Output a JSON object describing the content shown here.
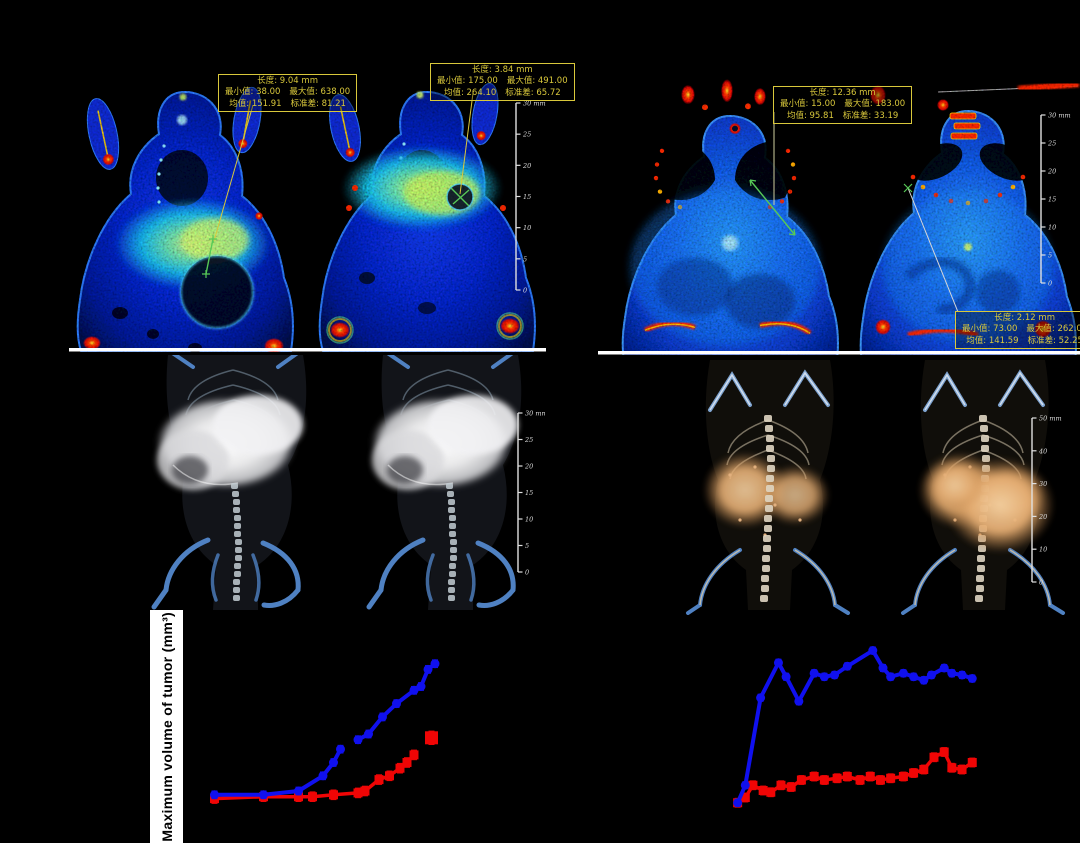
{
  "figure": {
    "background": "#000000",
    "description_visible_text_only": true
  },
  "ct_panels": {
    "left": {
      "annotations": [
        {
          "len": "长度: 9.04 mm",
          "min": "最小值: 38.00",
          "max": "最大值: 638.00",
          "mean": "均值: 151.91",
          "sd": "标准差: 81.21"
        },
        {
          "len": "长度: 3.84 mm",
          "min": "最小值: 175.00",
          "max": "最大值: 491.00",
          "mean": "均值: 264.10",
          "sd": "标准差: 65.72"
        }
      ],
      "ruler": {
        "labels": [
          "30 mm",
          "25",
          "20",
          "15",
          "10",
          "5",
          "0"
        ]
      }
    },
    "right": {
      "annotations": [
        {
          "len": "长度: 12.36 mm",
          "min": "最小值: 15.00",
          "max": "最大值: 183.00",
          "mean": "均值: 95.81",
          "sd": "标准差: 33.19"
        },
        {
          "len": "长度: 2.12 mm",
          "min": "最小值: 73.00",
          "max": "最大值: 262.00",
          "mean": "均值: 141.59",
          "sd": "标准差: 52.25"
        }
      ],
      "ruler": {
        "labels": [
          "30 mm",
          "25",
          "20",
          "15",
          "10",
          "5",
          "0"
        ]
      }
    }
  },
  "render_panels": {
    "left": {
      "ruler": {
        "labels": [
          "30 mm",
          "25",
          "20",
          "15",
          "10",
          "5",
          "0"
        ]
      }
    },
    "right": {
      "ruler": {
        "labels": [
          "50 mm",
          "40",
          "30",
          "20",
          "10",
          "0"
        ]
      }
    }
  },
  "charts": {
    "left": {
      "ylabel": "Maximum volume of tumor (mm³)"
    }
  },
  "colors": {
    "annotation_yellow": "#d9c83b",
    "measure_green": "#57c957",
    "series_blue": "#1010ee",
    "series_red": "#f00505",
    "ruler_white": "#e0e0e0"
  },
  "chart_data": [
    {
      "id": "left",
      "type": "line",
      "title": "",
      "xlabel": "",
      "ylabel": "Maximum volume of tumor (mm³)",
      "tick_labels_visible": false,
      "x_unit": "relative-% (axis tick text not visible in image)",
      "y_unit": "relative-% (axis tick text not visible in image)",
      "xlim": [
        0,
        100
      ],
      "ylim": [
        0,
        100
      ],
      "legend_visible": false,
      "series": [
        {
          "name": "red-squares",
          "color": "#f00505",
          "marker": "square",
          "marker_size": 9,
          "line_width": 3.5,
          "error": 2.5,
          "segments": [
            [
              [
                7,
                6
              ],
              [
                21,
                7
              ],
              [
                31,
                7
              ],
              [
                35,
                7
              ],
              [
                41,
                8
              ],
              [
                48,
                9
              ],
              [
                50,
                10
              ],
              [
                54,
                16
              ],
              [
                57,
                18
              ],
              [
                60,
                22
              ],
              [
                62,
                25
              ],
              [
                64,
                29
              ]
            ]
          ]
        },
        {
          "name": "blue-circles",
          "color": "#1010ee",
          "marker": "circle",
          "marker_size": 9,
          "line_width": 4,
          "error": 2,
          "segments": [
            [
              [
                7,
                8
              ],
              [
                21,
                8
              ],
              [
                31,
                10
              ],
              [
                38,
                18
              ],
              [
                41,
                25
              ],
              [
                43,
                32
              ]
            ],
            [
              [
                48,
                37
              ],
              [
                51,
                40
              ],
              [
                55,
                49
              ],
              [
                59,
                56
              ],
              [
                64,
                63
              ],
              [
                66,
                65
              ],
              [
                68,
                74
              ],
              [
                70,
                77
              ]
            ]
          ]
        },
        {
          "name": "red-detached-marker",
          "color": "#f00505",
          "marker": "square",
          "marker_size": 13,
          "line_width": 0,
          "error": 3.5,
          "segments": [
            [
              [
                69,
                38
              ]
            ]
          ]
        }
      ]
    },
    {
      "id": "right",
      "type": "line",
      "title": "",
      "xlabel": "",
      "ylabel": "",
      "tick_labels_visible": false,
      "x_unit": "relative-% (axis tick text not visible in image)",
      "y_unit": "relative-% (axis tick text not visible in image)",
      "xlim": [
        0,
        100
      ],
      "ylim": [
        0,
        100
      ],
      "legend_visible": false,
      "series": [
        {
          "name": "red-squares",
          "color": "#f00505",
          "marker": "square",
          "marker_size": 9,
          "line_width": 3.5,
          "error": 2.5,
          "segments": [
            [
              [
                3,
                7
              ],
              [
                6,
                10
              ],
              [
                9,
                17
              ],
              [
                13,
                14
              ],
              [
                16,
                13
              ],
              [
                20,
                17
              ],
              [
                24,
                16
              ],
              [
                28,
                20
              ],
              [
                33,
                22
              ],
              [
                37,
                20
              ],
              [
                42,
                21
              ],
              [
                46,
                22
              ],
              [
                51,
                20
              ],
              [
                55,
                22
              ],
              [
                59,
                20
              ],
              [
                63,
                21
              ],
              [
                68,
                22
              ],
              [
                72,
                24
              ],
              [
                76,
                26
              ],
              [
                80,
                33
              ],
              [
                84,
                36
              ],
              [
                87,
                27
              ],
              [
                91,
                26
              ],
              [
                95,
                30
              ]
            ]
          ]
        },
        {
          "name": "blue-circles",
          "color": "#1010ee",
          "marker": "circle",
          "marker_size": 9,
          "line_width": 4,
          "error": 2,
          "segments": [
            [
              [
                3,
                7
              ],
              [
                6,
                17
              ],
              [
                12,
                67
              ],
              [
                19,
                87
              ],
              [
                22,
                79
              ],
              [
                27,
                65
              ],
              [
                33,
                81
              ],
              [
                37,
                79
              ],
              [
                41,
                80
              ],
              [
                46,
                85
              ],
              [
                56,
                94
              ],
              [
                60,
                84
              ],
              [
                63,
                79
              ],
              [
                68,
                81
              ],
              [
                72,
                79
              ],
              [
                76,
                77
              ],
              [
                79,
                80
              ],
              [
                84,
                84
              ],
              [
                87,
                81
              ],
              [
                91,
                80
              ],
              [
                95,
                78
              ]
            ]
          ]
        }
      ]
    }
  ]
}
